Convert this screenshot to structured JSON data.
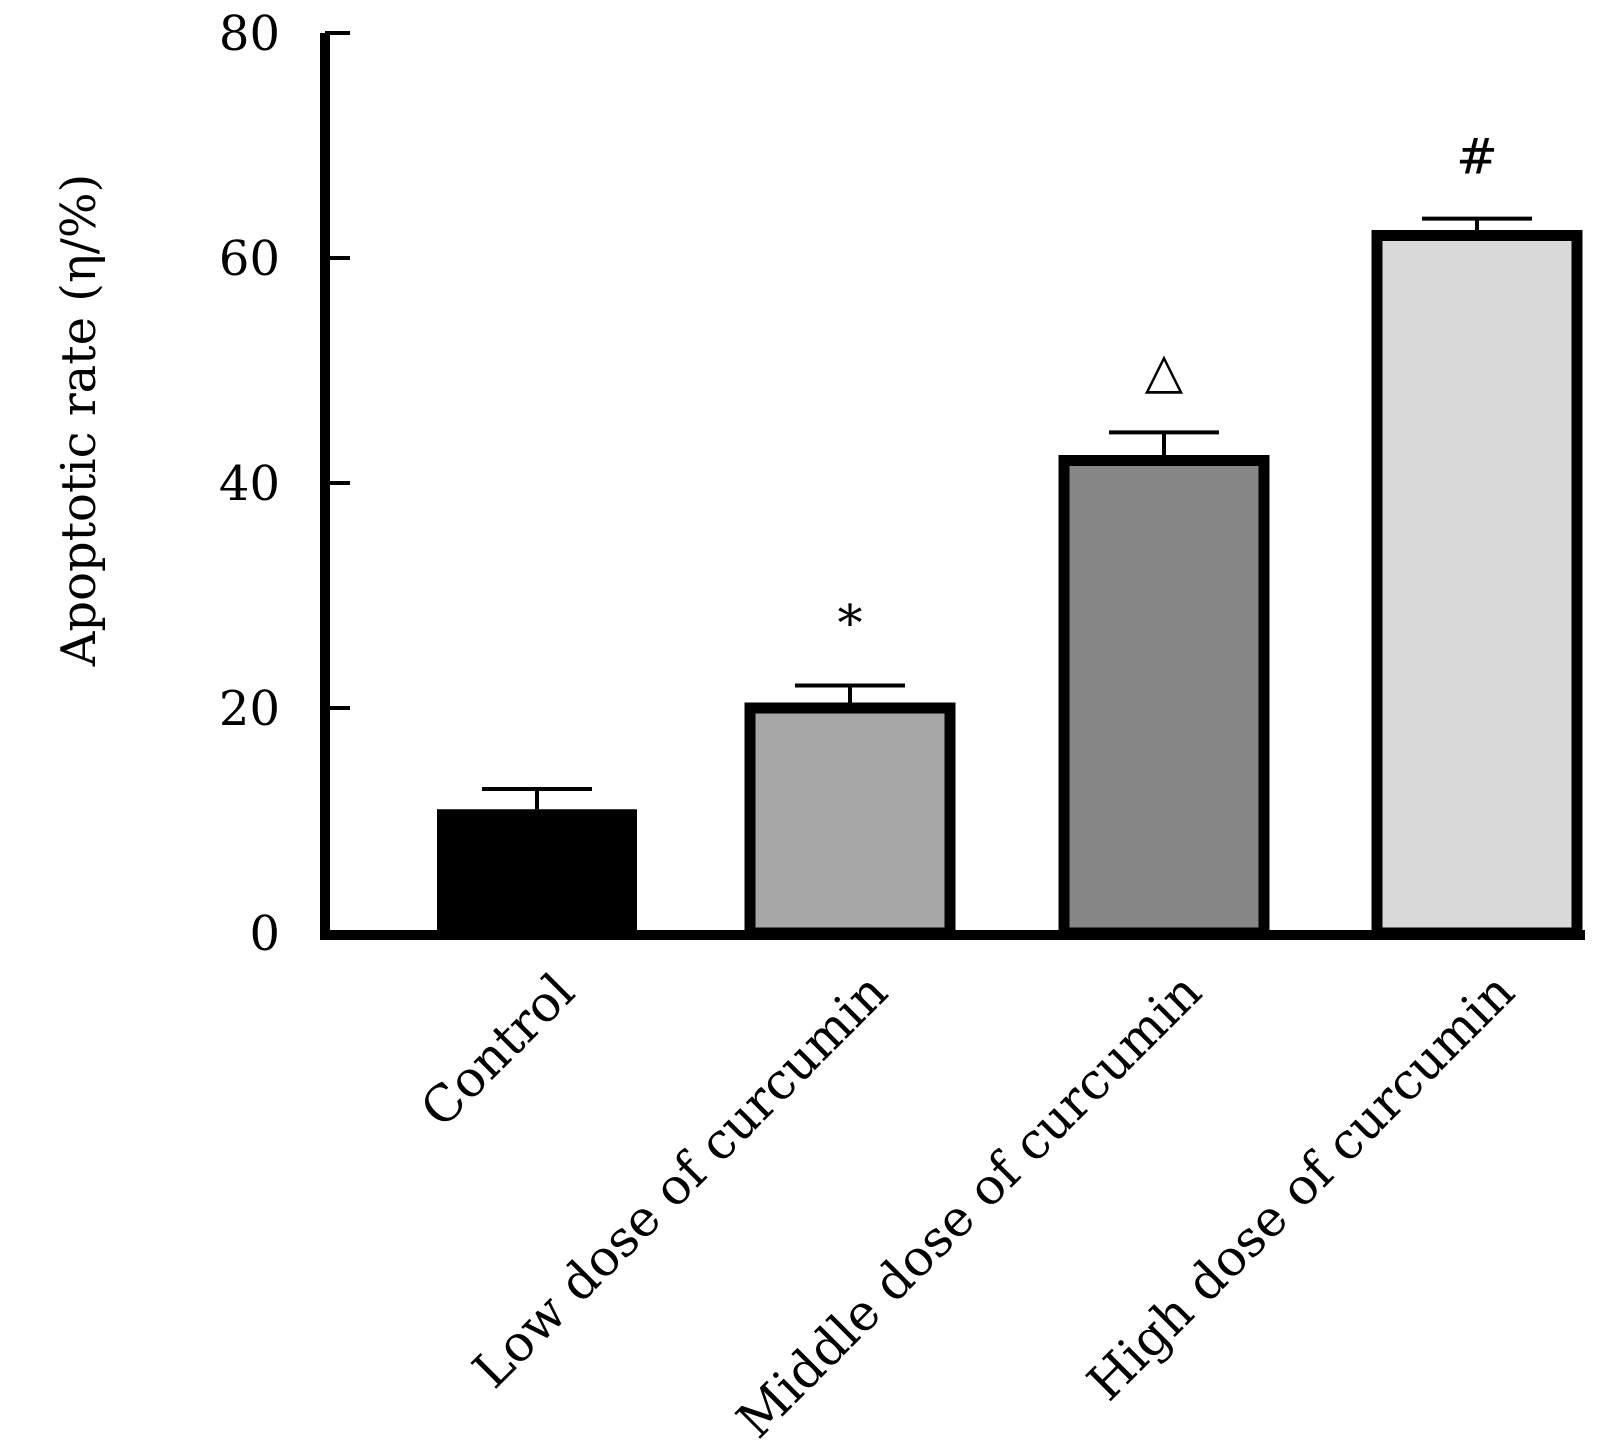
{
  "chart_data": {
    "type": "bar",
    "title": "",
    "xlabel": "",
    "ylabel": "Apoptotic rate (η/%)",
    "ylim": [
      0,
      80
    ],
    "yticks": [
      0,
      20,
      40,
      60,
      80
    ],
    "grid": false,
    "categories": [
      "Control",
      "Low dose of curcumin",
      "Middle dose of curcumin",
      "High dose of curcumin"
    ],
    "values": [
      11,
      20,
      42,
      62
    ],
    "errors": [
      1.8,
      2.0,
      2.5,
      1.5
    ],
    "colors": [
      "#000000",
      "#a6a6a6",
      "#868686",
      "#d9d9d9"
    ],
    "annotations": [
      "",
      "*",
      "△",
      "#"
    ]
  }
}
